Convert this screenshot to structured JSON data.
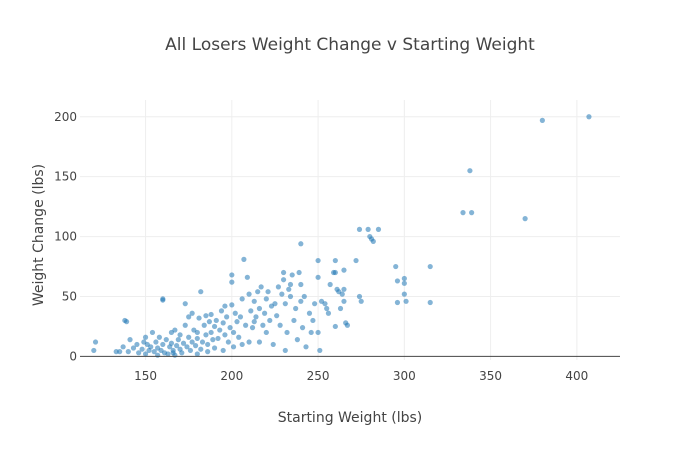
{
  "chart_data": {
    "type": "scatter",
    "title": "All Losers Weight Change v Starting Weight",
    "xlabel": "Starting Weight (lbs)",
    "ylabel": "Weight Change (lbs)",
    "xlim": [
      112,
      425
    ],
    "ylim": [
      -3,
      214
    ],
    "xticks": [
      150,
      200,
      250,
      300,
      350,
      400
    ],
    "yticks": [
      0,
      50,
      100,
      150,
      200
    ],
    "grid": true,
    "color": "#1f77b4",
    "points": [
      [
        120,
        5
      ],
      [
        121,
        12
      ],
      [
        133,
        4
      ],
      [
        135,
        4
      ],
      [
        137,
        8
      ],
      [
        138,
        30
      ],
      [
        139,
        29
      ],
      [
        140,
        4
      ],
      [
        141,
        14
      ],
      [
        143,
        7
      ],
      [
        145,
        10
      ],
      [
        146,
        3
      ],
      [
        148,
        6
      ],
      [
        149,
        12
      ],
      [
        150,
        2
      ],
      [
        150,
        16
      ],
      [
        151,
        10
      ],
      [
        152,
        5
      ],
      [
        153,
        8
      ],
      [
        154,
        20
      ],
      [
        155,
        4
      ],
      [
        156,
        12
      ],
      [
        157,
        7
      ],
      [
        157,
        1
      ],
      [
        158,
        16
      ],
      [
        159,
        5
      ],
      [
        160,
        47
      ],
      [
        160,
        48
      ],
      [
        160,
        10
      ],
      [
        161,
        3
      ],
      [
        162,
        14
      ],
      [
        163,
        2
      ],
      [
        164,
        8
      ],
      [
        165,
        11
      ],
      [
        165,
        20
      ],
      [
        166,
        3
      ],
      [
        166,
        5
      ],
      [
        167,
        1
      ],
      [
        167,
        22
      ],
      [
        168,
        9
      ],
      [
        169,
        14
      ],
      [
        170,
        6
      ],
      [
        170,
        18
      ],
      [
        171,
        3
      ],
      [
        172,
        11
      ],
      [
        173,
        26
      ],
      [
        173,
        44
      ],
      [
        174,
        8
      ],
      [
        175,
        16
      ],
      [
        175,
        33
      ],
      [
        176,
        5
      ],
      [
        177,
        12
      ],
      [
        177,
        36
      ],
      [
        178,
        22
      ],
      [
        179,
        9
      ],
      [
        180,
        2
      ],
      [
        180,
        15
      ],
      [
        180,
        20
      ],
      [
        181,
        32
      ],
      [
        182,
        54
      ],
      [
        182,
        6
      ],
      [
        183,
        12
      ],
      [
        184,
        26
      ],
      [
        185,
        18
      ],
      [
        185,
        34
      ],
      [
        186,
        4
      ],
      [
        186,
        10
      ],
      [
        187,
        29
      ],
      [
        188,
        35
      ],
      [
        188,
        20
      ],
      [
        189,
        14
      ],
      [
        190,
        25
      ],
      [
        190,
        7
      ],
      [
        191,
        30
      ],
      [
        192,
        15
      ],
      [
        193,
        22
      ],
      [
        194,
        38
      ],
      [
        195,
        5
      ],
      [
        195,
        28
      ],
      [
        196,
        18
      ],
      [
        196,
        42
      ],
      [
        197,
        33
      ],
      [
        198,
        12
      ],
      [
        199,
        24
      ],
      [
        200,
        43
      ],
      [
        200,
        62
      ],
      [
        200,
        68
      ],
      [
        201,
        8
      ],
      [
        201,
        20
      ],
      [
        202,
        36
      ],
      [
        203,
        29
      ],
      [
        204,
        16
      ],
      [
        205,
        33
      ],
      [
        206,
        48
      ],
      [
        206,
        10
      ],
      [
        207,
        81
      ],
      [
        208,
        26
      ],
      [
        209,
        66
      ],
      [
        210,
        52
      ],
      [
        210,
        12
      ],
      [
        211,
        38
      ],
      [
        212,
        24
      ],
      [
        213,
        29
      ],
      [
        213,
        46
      ],
      [
        214,
        33
      ],
      [
        215,
        54
      ],
      [
        216,
        40
      ],
      [
        216,
        12
      ],
      [
        217,
        58
      ],
      [
        218,
        26
      ],
      [
        219,
        36
      ],
      [
        220,
        48
      ],
      [
        220,
        20
      ],
      [
        221,
        54
      ],
      [
        222,
        30
      ],
      [
        223,
        42
      ],
      [
        224,
        10
      ],
      [
        225,
        44
      ],
      [
        226,
        34
      ],
      [
        227,
        58
      ],
      [
        228,
        26
      ],
      [
        229,
        52
      ],
      [
        230,
        64
      ],
      [
        230,
        70
      ],
      [
        231,
        5
      ],
      [
        231,
        44
      ],
      [
        232,
        20
      ],
      [
        233,
        56
      ],
      [
        234,
        60
      ],
      [
        234,
        50
      ],
      [
        235,
        68
      ],
      [
        236,
        30
      ],
      [
        237,
        40
      ],
      [
        238,
        14
      ],
      [
        239,
        70
      ],
      [
        240,
        94
      ],
      [
        240,
        46
      ],
      [
        240,
        60
      ],
      [
        241,
        24
      ],
      [
        242,
        50
      ],
      [
        243,
        8
      ],
      [
        245,
        36
      ],
      [
        246,
        20
      ],
      [
        247,
        30
      ],
      [
        248,
        44
      ],
      [
        250,
        80
      ],
      [
        250,
        66
      ],
      [
        250,
        20
      ],
      [
        251,
        5
      ],
      [
        252,
        46
      ],
      [
        254,
        44
      ],
      [
        255,
        40
      ],
      [
        256,
        36
      ],
      [
        257,
        60
      ],
      [
        259,
        70
      ],
      [
        260,
        80
      ],
      [
        260,
        70
      ],
      [
        260,
        25
      ],
      [
        261,
        56
      ],
      [
        262,
        54
      ],
      [
        263,
        40
      ],
      [
        264,
        52
      ],
      [
        265,
        72
      ],
      [
        265,
        56
      ],
      [
        265,
        46
      ],
      [
        266,
        28
      ],
      [
        267,
        26
      ],
      [
        272,
        80
      ],
      [
        274,
        106
      ],
      [
        274,
        50
      ],
      [
        275,
        46
      ],
      [
        279,
        106
      ],
      [
        280,
        100
      ],
      [
        281,
        98
      ],
      [
        282,
        96
      ],
      [
        285,
        106
      ],
      [
        295,
        75
      ],
      [
        296,
        63
      ],
      [
        296,
        45
      ],
      [
        300,
        65
      ],
      [
        300,
        61
      ],
      [
        300,
        52
      ],
      [
        301,
        46
      ],
      [
        315,
        75
      ],
      [
        315,
        45
      ],
      [
        334,
        120
      ],
      [
        338,
        155
      ],
      [
        339,
        120
      ],
      [
        370,
        115
      ],
      [
        380,
        197
      ],
      [
        407,
        200
      ]
    ]
  }
}
